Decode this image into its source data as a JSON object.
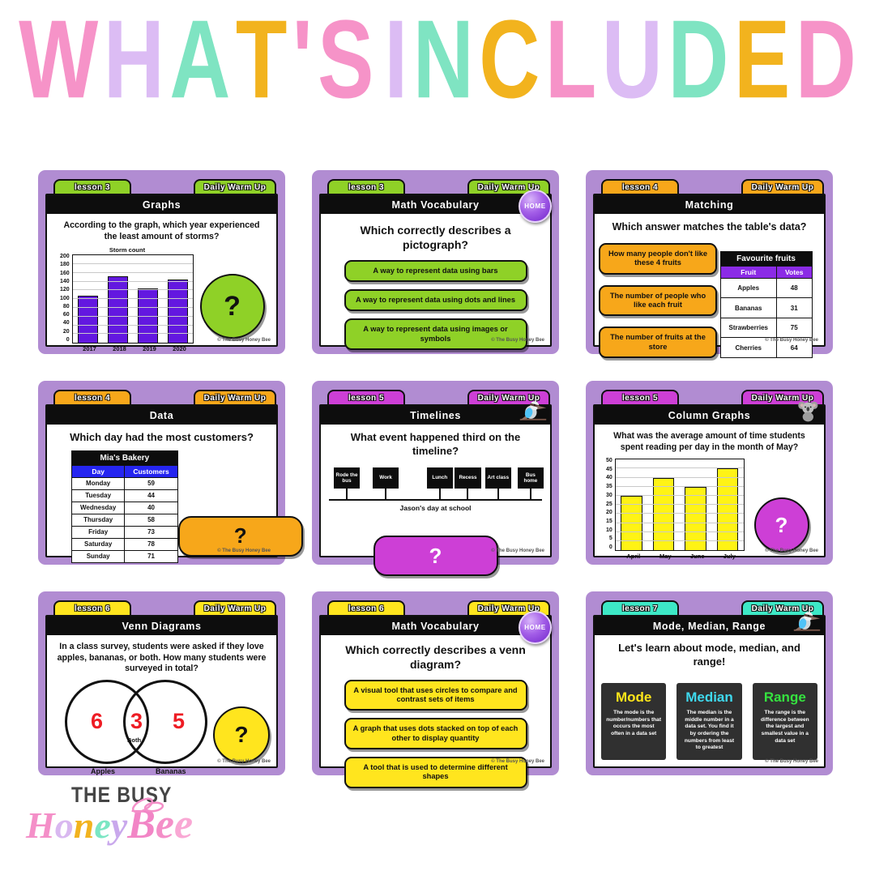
{
  "headline": {
    "text": "WHAT'S INCLUDED",
    "letters": [
      {
        "ch": "W",
        "c": "#F693C8"
      },
      {
        "ch": "H",
        "c": "#DCBCF4"
      },
      {
        "ch": "A",
        "c": "#7FE4C2"
      },
      {
        "ch": "T",
        "c": "#F2B31E"
      },
      {
        "ch": "'",
        "c": "#F693C8"
      },
      {
        "ch": "S",
        "c": "#F693C8"
      },
      {
        "ch": " ",
        "c": ""
      },
      {
        "ch": "I",
        "c": "#DCBCF4"
      },
      {
        "ch": "N",
        "c": "#7FE4C2"
      },
      {
        "ch": "C",
        "c": "#F2B31E"
      },
      {
        "ch": "L",
        "c": "#F693C8"
      },
      {
        "ch": "U",
        "c": "#DCBCF4"
      },
      {
        "ch": "D",
        "c": "#7FE4C2"
      },
      {
        "ch": "E",
        "c": "#F2B31E"
      },
      {
        "ch": "D",
        "c": "#F693C8"
      }
    ]
  },
  "footer": "© The Busy Honey Bee",
  "theme": {
    "frame_purple": "#B18CD2",
    "green": "#8FD127",
    "orange": "#F7A71A",
    "magenta": "#CD3FD6",
    "yellow": "#FFE51E",
    "teal": "#3DE8C6"
  },
  "cards": [
    {
      "lesson": "lesson 3",
      "warmup": "Daily Warm Up",
      "title": "Graphs",
      "accent": "#8FD127",
      "question": "According to the graph, which year experienced the least amount of storms?",
      "chart": {
        "type": "bar",
        "title": "Storm count",
        "categories": [
          "2017",
          "2018",
          "2019",
          "2020"
        ],
        "values": [
          107,
          152,
          125,
          145
        ],
        "ylim": [
          0,
          200
        ],
        "ystep": 20,
        "bar_color": "#6318E0"
      },
      "reveal": "?"
    },
    {
      "lesson": "lesson 3",
      "warmup": "Daily Warm Up",
      "title": "Math Vocabulary",
      "accent": "#8FD127",
      "home": "HOME",
      "question": "Which correctly describes a pictograph?",
      "answers": [
        "A way to represent data using bars",
        "A way to represent data using dots and lines",
        "A way to represent data using images or symbols"
      ]
    },
    {
      "lesson": "lesson 4",
      "warmup": "Daily Warm Up",
      "title": "Matching",
      "accent": "#F7A71A",
      "question": "Which answer matches the table's data?",
      "answers": [
        "How many people don't like these 4 fruits",
        "The number of people who like each fruit",
        "The number of fruits at the store"
      ],
      "table": {
        "title": "Favourite fruits",
        "header_color": "#8B2BE6",
        "headers": [
          "Fruit",
          "Votes"
        ],
        "rows": [
          [
            "Apples",
            "48"
          ],
          [
            "Bananas",
            "31"
          ],
          [
            "Strawberries",
            "75"
          ],
          [
            "Cherries",
            "64"
          ]
        ]
      }
    },
    {
      "lesson": "lesson 4",
      "warmup": "Daily Warm Up",
      "title": "Data",
      "accent": "#F7A71A",
      "question": "Which day had the most customers?",
      "table": {
        "title": "Mia's Bakery",
        "header_color": "#2525F0",
        "headers": [
          "Day",
          "Customers"
        ],
        "rows": [
          [
            "Monday",
            "59"
          ],
          [
            "Tuesday",
            "44"
          ],
          [
            "Wednesday",
            "40"
          ],
          [
            "Thursday",
            "58"
          ],
          [
            "Friday",
            "73"
          ],
          [
            "Saturday",
            "78"
          ],
          [
            "Sunday",
            "71"
          ]
        ]
      },
      "reveal": "?"
    },
    {
      "lesson": "lesson 5",
      "warmup": "Daily Warm Up",
      "title": "Timelines",
      "accent": "#CD3FD6",
      "question": "What event happened third on the timeline?",
      "timeline": {
        "events": [
          "Rode the bus",
          "Work",
          "Lunch",
          "Recess",
          "Art class",
          "Bus home"
        ],
        "caption": "Jason's day at school"
      },
      "reveal": "?"
    },
    {
      "lesson": "lesson 5",
      "warmup": "Daily Warm Up",
      "title": "Column Graphs",
      "accent": "#CD3FD6",
      "question": "What was the average amount of time students spent reading per day in the month of May?",
      "chart": {
        "type": "bar",
        "title": "",
        "categories": [
          "April",
          "May",
          "June",
          "July"
        ],
        "values": [
          30,
          40,
          35,
          45
        ],
        "ylim": [
          0,
          50
        ],
        "ystep": 5,
        "bar_color": "#FFF315"
      },
      "reveal": "?"
    },
    {
      "lesson": "lesson 6",
      "warmup": "Daily Warm Up",
      "title": "Venn Diagrams",
      "accent": "#FFE51E",
      "question": "In a class survey, students were asked if they love apples, bananas, or both. How many students were surveyed in total?",
      "venn": {
        "left_value": "6",
        "both_value": "3",
        "right_value": "5",
        "both_label": "Both",
        "left_label": "Apples",
        "right_label": "Bananas"
      },
      "reveal": "?"
    },
    {
      "lesson": "lesson 6",
      "warmup": "Daily Warm Up",
      "title": "Math Vocabulary",
      "accent": "#FFE51E",
      "home": "HOME",
      "question": "Which correctly describes a venn diagram?",
      "answers": [
        "A visual tool that uses circles to compare and contrast sets of items",
        "A graph that uses dots stacked on top of each other to display quantity",
        "A tool that is used to determine different shapes"
      ]
    },
    {
      "lesson": "lesson 7",
      "warmup": "Daily Warm Up",
      "title": "Mode, Median, Range",
      "accent": "#3DE8C6",
      "intro": "Let's learn about mode, median, and range!",
      "definitions": [
        {
          "term": "Mode",
          "color": "#FFE61A",
          "text": "The mode is the number/numbers that occurs the most often in a data set"
        },
        {
          "term": "Median",
          "color": "#3FD9EE",
          "text": "The median is the middle number in a data set. You find it by ordering the numbers from least to greatest"
        },
        {
          "term": "Range",
          "color": "#35E23F",
          "text": "The range is the difference between the largest and smallest value in a data set"
        }
      ]
    }
  ],
  "logo": {
    "top": "THE BUSY",
    "honey_letters": [
      {
        "ch": "H",
        "c": "#F48FC8"
      },
      {
        "ch": "o",
        "c": "#D9B8F0"
      },
      {
        "ch": "n",
        "c": "#F2B31F"
      },
      {
        "ch": "e",
        "c": "#7BE6C3"
      },
      {
        "ch": "y",
        "c": "#C9A8EC"
      }
    ],
    "bee_letters": [
      {
        "ch": "B",
        "c": "#F285C6"
      },
      {
        "ch": "e",
        "c": "#F48FC8"
      },
      {
        "ch": "e",
        "c": "#F9A8D4"
      }
    ]
  }
}
